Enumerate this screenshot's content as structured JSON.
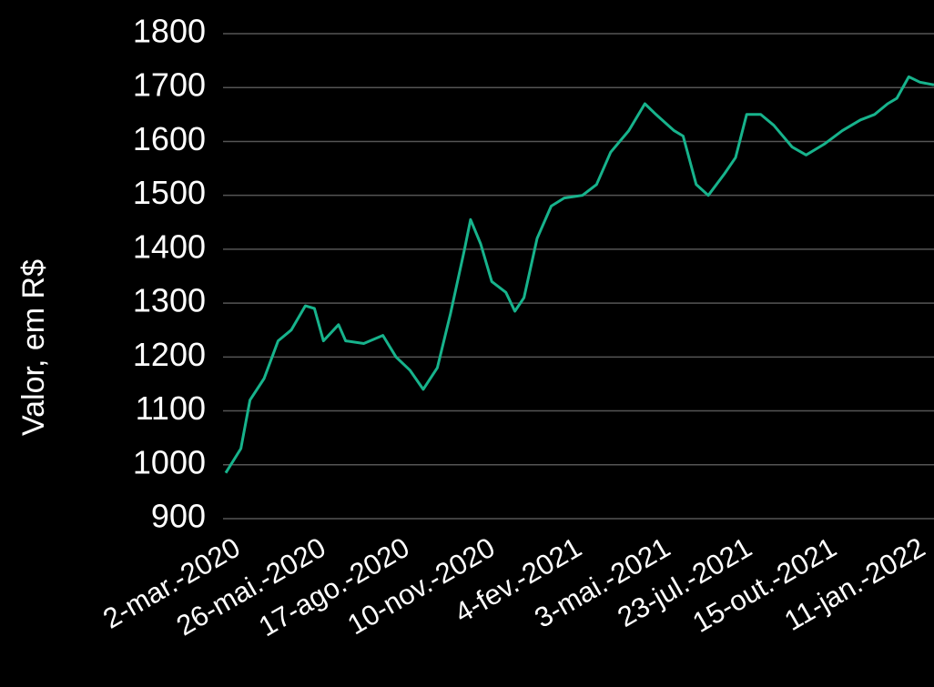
{
  "chart_data": {
    "type": "line",
    "y_label": "Valor, em R$",
    "color": "#17b38c",
    "x": [
      "2020-03-02",
      "2020-03-17",
      "2020-03-26",
      "2020-04-09",
      "2020-04-23",
      "2020-05-06",
      "2020-05-20",
      "2020-05-29",
      "2020-06-07",
      "2020-06-22",
      "2020-06-29",
      "2020-07-17",
      "2020-08-05",
      "2020-08-18",
      "2020-09-01",
      "2020-09-14",
      "2020-09-28",
      "2020-10-11",
      "2020-10-25",
      "2020-10-31",
      "2020-11-10",
      "2020-11-21",
      "2020-12-05",
      "2020-12-14",
      "2020-12-23",
      "2021-01-05",
      "2021-01-19",
      "2021-02-01",
      "2021-02-19",
      "2021-03-05",
      "2021-03-19",
      "2021-04-06",
      "2021-04-22",
      "2021-05-03",
      "2021-05-21",
      "2021-05-30",
      "2021-06-12",
      "2021-06-24",
      "2021-07-10",
      "2021-07-21",
      "2021-08-01",
      "2021-08-15",
      "2021-08-28",
      "2021-09-15",
      "2021-09-29",
      "2021-10-17",
      "2021-11-04",
      "2021-11-22",
      "2021-12-06",
      "2021-12-19",
      "2021-12-28",
      "2022-01-09",
      "2022-01-20",
      "2022-02-03"
    ],
    "values": [
      985,
      1030,
      1120,
      1160,
      1230,
      1250,
      1295,
      1290,
      1230,
      1260,
      1230,
      1225,
      1240,
      1200,
      1175,
      1140,
      1180,
      1280,
      1400,
      1455,
      1410,
      1340,
      1320,
      1285,
      1310,
      1420,
      1480,
      1495,
      1500,
      1520,
      1580,
      1620,
      1670,
      1650,
      1620,
      1610,
      1520,
      1500,
      1540,
      1570,
      1650,
      1650,
      1630,
      1590,
      1575,
      1595,
      1620,
      1640,
      1650,
      1670,
      1680,
      1720,
      1710,
      1705
    ],
    "xlim": [
      "2020-03-02",
      "2022-02-03"
    ],
    "xticks": [
      {
        "value": "2020-03-02",
        "label": "2-mar.-2020"
      },
      {
        "value": "2020-05-26",
        "label": "26-mai.-2020"
      },
      {
        "value": "2020-08-17",
        "label": "17-ago.-2020"
      },
      {
        "value": "2020-11-10",
        "label": "10-nov.-2020"
      },
      {
        "value": "2021-02-04",
        "label": "4-fev.-2021"
      },
      {
        "value": "2021-05-03",
        "label": "3-mai.-2021"
      },
      {
        "value": "2021-07-23",
        "label": "23-jul.-2021"
      },
      {
        "value": "2021-10-15",
        "label": "15-out.-2021"
      },
      {
        "value": "2022-01-11",
        "label": "11-jan.-2022"
      }
    ],
    "ylim": [
      900,
      1800
    ],
    "yticks": [
      900,
      1000,
      1100,
      1200,
      1300,
      1400,
      1500,
      1600,
      1700,
      1800
    ],
    "grid": true
  }
}
